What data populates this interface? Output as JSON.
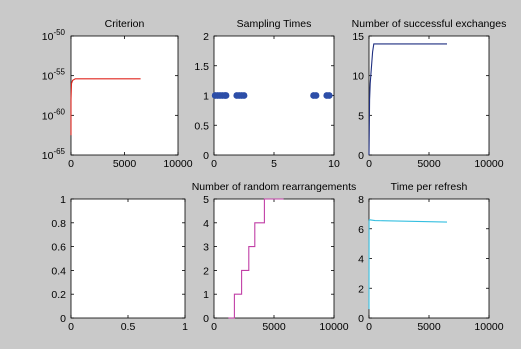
{
  "figure": {
    "background": "#c9c9c9",
    "axes_background": "#ffffff"
  },
  "chart_data": [
    {
      "type": "line",
      "title": "Criterion",
      "xlabel": "",
      "ylabel": "",
      "xlim": [
        0,
        10000
      ],
      "ylim_exponent": [
        -65,
        -50
      ],
      "yscale": "log",
      "x_ticks": [
        "0",
        "5000",
        "10000"
      ],
      "y_ticks": [
        {
          "base": "10",
          "exp": "-50",
          "value": -50
        },
        {
          "base": "10",
          "exp": "-55",
          "value": -55
        },
        {
          "base": "10",
          "exp": "-60",
          "value": -60
        },
        {
          "base": "10",
          "exp": "-65",
          "value": -65
        }
      ],
      "series": [
        {
          "color": "#e0261e",
          "x": [
            0,
            0,
            50,
            150,
            400,
            6500
          ],
          "y_exponent": [
            -62.5,
            -58,
            -56,
            -55.6,
            -55.4,
            -55.4
          ]
        }
      ]
    },
    {
      "type": "scatter",
      "title": "Sampling Times",
      "xlabel": "",
      "ylabel": "",
      "xlim": [
        0,
        10
      ],
      "ylim": [
        0,
        2
      ],
      "x_ticks": [
        "0",
        "5",
        "10"
      ],
      "y_ticks": [
        "0",
        "0.5",
        "1",
        "1.5",
        "2"
      ],
      "series": [
        {
          "color": "#2d4ea8",
          "x": [
            0.1,
            0.3,
            0.5,
            0.7,
            0.9,
            1.0,
            1.9,
            2.1,
            2.3,
            2.5,
            8.3,
            8.5,
            9.4,
            9.6
          ],
          "y": [
            1,
            1,
            1,
            1,
            1,
            1,
            1,
            1,
            1,
            1,
            1,
            1,
            1,
            1
          ]
        }
      ]
    },
    {
      "type": "line",
      "title": "Number of successful exchanges",
      "xlabel": "",
      "ylabel": "",
      "xlim": [
        0,
        10000
      ],
      "ylim": [
        0,
        15
      ],
      "x_ticks": [
        "0",
        "5000",
        "10000"
      ],
      "y_ticks": [
        "0",
        "5",
        "10",
        "15"
      ],
      "series": [
        {
          "color": "#1f2f80",
          "x": [
            0,
            50,
            100,
            200,
            250,
            300,
            400,
            6500
          ],
          "y": [
            0,
            7,
            9,
            11,
            12,
            13,
            14,
            14
          ]
        }
      ]
    },
    {
      "type": "line",
      "title": "",
      "xlabel": "",
      "ylabel": "",
      "xlim": [
        0,
        1
      ],
      "ylim": [
        0,
        1
      ],
      "x_ticks": [
        "0",
        "0.5",
        "1"
      ],
      "y_ticks": [
        "0",
        "0.2",
        "0.4",
        "0.6",
        "0.8",
        "1"
      ],
      "series": []
    },
    {
      "type": "line",
      "title": "Number of random rearrangements",
      "xlabel": "",
      "ylabel": "",
      "xlim": [
        0,
        10000
      ],
      "ylim": [
        0,
        5
      ],
      "x_ticks": [
        "0",
        "5000",
        "10000"
      ],
      "y_ticks": [
        "0",
        "1",
        "2",
        "3",
        "4",
        "5"
      ],
      "series": [
        {
          "color": "#c13fa6",
          "step": true,
          "x": [
            1200,
            1700,
            2300,
            2900,
            3400,
            4200,
            5300,
            5800
          ],
          "y": [
            0,
            1,
            2,
            3,
            4,
            5,
            5,
            5
          ]
        }
      ]
    },
    {
      "type": "line",
      "title": "Time per refresh",
      "xlabel": "",
      "ylabel": "",
      "xlim": [
        0,
        10000
      ],
      "ylim": [
        0,
        8
      ],
      "x_ticks": [
        "0",
        "5000",
        "10000"
      ],
      "y_ticks": [
        "0",
        "2",
        "4",
        "6",
        "8"
      ],
      "series": [
        {
          "color": "#35bfe0",
          "x": [
            0,
            10,
            30,
            500,
            6500
          ],
          "y": [
            0.6,
            6.5,
            6.6,
            6.55,
            6.45
          ]
        }
      ]
    }
  ]
}
